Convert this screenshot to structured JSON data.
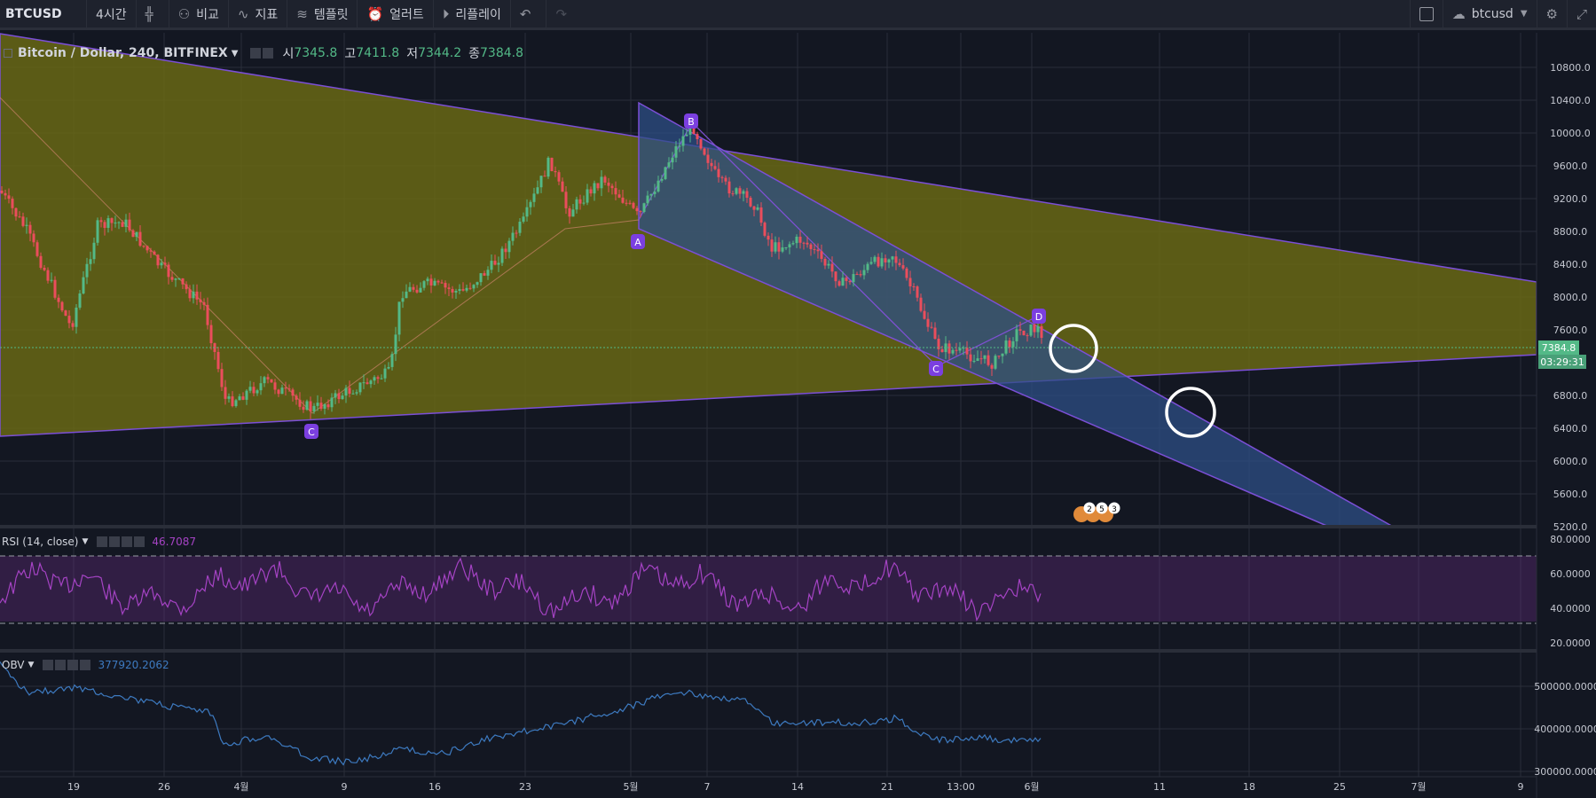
{
  "toolbar": {
    "symbol": "BTCUSD",
    "interval": "4시간",
    "compare": "비교",
    "indicators": "지표",
    "templates": "템플릿",
    "alerts": "얼러트",
    "replay": "리플레이",
    "layout_name": "btcusd"
  },
  "legend": {
    "title": "Bitcoin / Dollar, 240, BITFINEX",
    "open_label": "시",
    "open": "7345.8",
    "high_label": "고",
    "high": "7411.8",
    "low_label": "저",
    "low": "7344.2",
    "close_label": "종",
    "close": "7384.8"
  },
  "price_axis": [
    "10800.0",
    "10400.0",
    "10000.0",
    "9600.0",
    "9200.0",
    "8800.0",
    "8400.0",
    "8000.0",
    "7600.0",
    "6800.0",
    "6400.0",
    "6000.0",
    "5600.0",
    "5200.0"
  ],
  "price_tag": {
    "price": "7384.8",
    "countdown": "03:29:31"
  },
  "pattern_labels": [
    "B",
    "A",
    "D",
    "C",
    "C"
  ],
  "event_badges": [
    "2",
    "5",
    "3"
  ],
  "rsi": {
    "title": "RSI (14, close)",
    "value": "46.7087",
    "axis": [
      "80.0000",
      "60.0000",
      "40.0000",
      "20.0000"
    ]
  },
  "obv": {
    "title": "OBV",
    "value": "377920.2062",
    "axis": [
      "500000.0000",
      "400000.0000",
      "300000.0000"
    ]
  },
  "time_axis": [
    "19",
    "26",
    "4월",
    "9",
    "16",
    "23",
    "5월",
    "7",
    "14",
    "21",
    "13:00",
    "6월",
    "11",
    "18",
    "25",
    "7월",
    "9"
  ],
  "colors": {
    "bg": "#131722",
    "toolbar_bg": "#1e222d",
    "up_candle": "#53b987",
    "down_candle": "#eb4d5c",
    "triangle_fill": "#6b6a13",
    "channel_fill": "#2d4f86",
    "pattern_line": "#7b4fd6",
    "rsi_line": "#a543c4",
    "obv_line": "#3d7ac0",
    "price_tag": "#53b987"
  }
}
